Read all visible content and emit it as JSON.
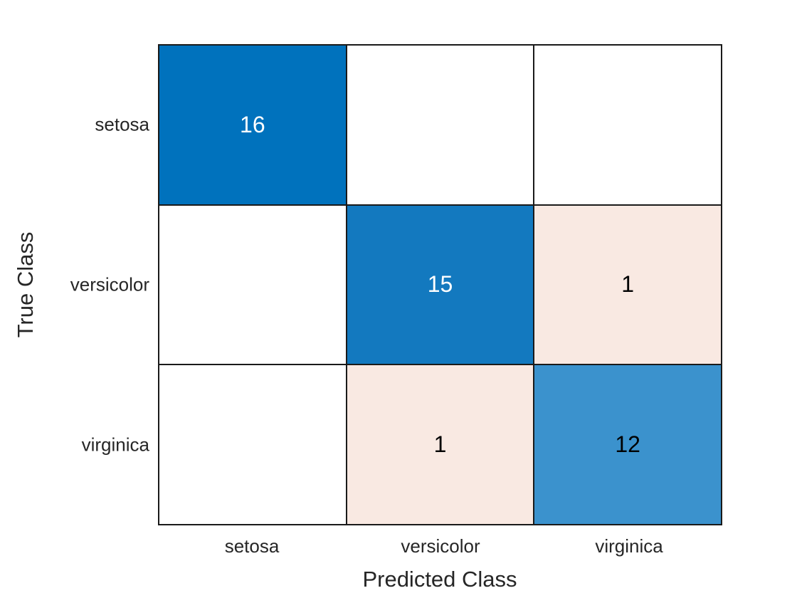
{
  "chart_data": {
    "type": "heatmap",
    "subtype": "confusion-matrix",
    "title": "",
    "xlabel": "Predicted Class",
    "ylabel": "True Class",
    "x_categories": [
      "setosa",
      "versicolor",
      "virginica"
    ],
    "y_categories": [
      "setosa",
      "versicolor",
      "virginica"
    ],
    "matrix": [
      [
        16,
        0,
        0
      ],
      [
        0,
        15,
        1
      ],
      [
        0,
        1,
        12
      ]
    ],
    "cell_labels": [
      [
        "16",
        "",
        ""
      ],
      [
        "",
        "15",
        "1"
      ],
      [
        "",
        "1",
        "12"
      ]
    ],
    "cell_colors": [
      [
        "#0072BD",
        "#FFFFFF",
        "#FFFFFF"
      ],
      [
        "#FFFFFF",
        "#1379BF",
        "#F9E9E2"
      ],
      [
        "#FFFFFF",
        "#F9E9E2",
        "#3B92CD"
      ]
    ],
    "cell_text_colors": [
      [
        "#FFFFFF",
        "#000000",
        "#000000"
      ],
      [
        "#000000",
        "#FFFFFF",
        "#000000"
      ],
      [
        "#000000",
        "#000000",
        "#000000"
      ]
    ],
    "diagonal_color": "#0072BD",
    "off_diagonal_color": "#D95319",
    "grid_line_color": "#1a1a1a",
    "background_color": "#FFFFFF",
    "legend": "off",
    "grid": "on"
  }
}
